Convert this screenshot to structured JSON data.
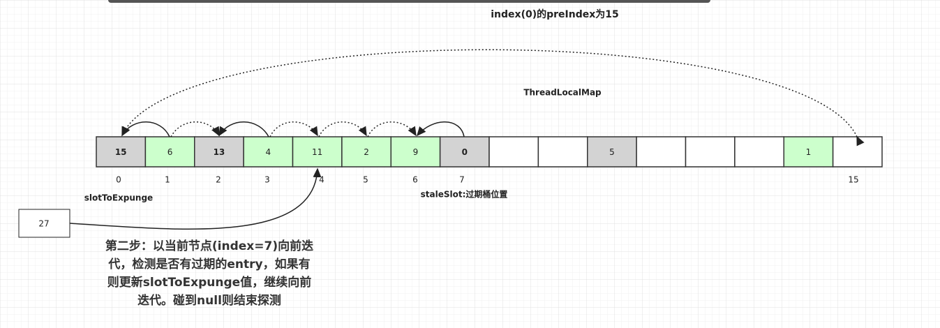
{
  "annotation": "index(0)的preIndex为15",
  "map_label": "ThreadLocalMap",
  "cells": [
    {
      "label": "15",
      "kind": "stale"
    },
    {
      "label": "6",
      "kind": "entry"
    },
    {
      "label": "13",
      "kind": "stale"
    },
    {
      "label": "4",
      "kind": "entry"
    },
    {
      "label": "11",
      "kind": "entry"
    },
    {
      "label": "2",
      "kind": "entry"
    },
    {
      "label": "9",
      "kind": "entry"
    },
    {
      "label": "0",
      "kind": "stale"
    },
    null,
    null,
    {
      "label": "5",
      "kind": "stale-plain"
    },
    null,
    null,
    null,
    {
      "label": "1",
      "kind": "entry"
    },
    null
  ],
  "indices": [
    "0",
    "1",
    "2",
    "3",
    "4",
    "5",
    "6",
    "7",
    "15"
  ],
  "slot_label": "slotToExpunge",
  "stale_label": "staleSlot:过期桶位置",
  "node": "27",
  "description": [
    "第二步：以当前节点(index=7)向前迭",
    "代，检测是否有过期的entry，如果有",
    "则更新slotToExpunge值，继续向前",
    "迭代。碰到null则结束探测"
  ]
}
